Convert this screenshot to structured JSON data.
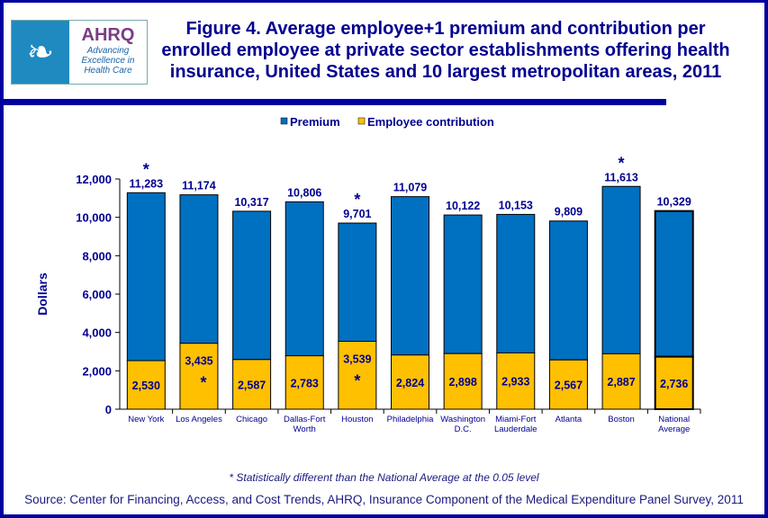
{
  "title": "Figure 4. Average employee+1 premium and contribution per enrolled employee at private sector establishments offering health insurance, United States and 10 largest metropolitan areas, 2011",
  "logo": {
    "text": "AHRQ",
    "tagline": "Advancing Excellence in Health Care"
  },
  "colors": {
    "premium": "#0070c0",
    "contribution": "#ffc000",
    "text": "#000090",
    "frame": "#0000a0"
  },
  "chart_data": {
    "type": "bar",
    "stacked": "overlay",
    "ylabel": "Dollars",
    "ylim": [
      0,
      12000
    ],
    "yticks": [
      "0",
      "2,000",
      "4,000",
      "6,000",
      "8,000",
      "10,000",
      "12,000"
    ],
    "legend": {
      "position": "top",
      "entries": [
        "Premium",
        "Employee contribution"
      ]
    },
    "categories": [
      "New York",
      "Los Angeles",
      "Chicago",
      "Dallas-Fort Worth",
      "Houston",
      "Philadelphia",
      "Washington D.C.",
      "Miami-Fort Lauderdale",
      "Atlanta",
      "Boston",
      "National Average"
    ],
    "category_lines": [
      [
        "New York"
      ],
      [
        "Los Angeles"
      ],
      [
        "Chicago"
      ],
      [
        "Dallas-Fort",
        "Worth"
      ],
      [
        "Houston"
      ],
      [
        "Philadelphia"
      ],
      [
        "Washington",
        "D.C."
      ],
      [
        "Miami-Fort",
        "Lauderdale"
      ],
      [
        "Atlanta"
      ],
      [
        "Boston"
      ],
      [
        "National",
        "Average"
      ]
    ],
    "series": [
      {
        "name": "Premium",
        "values": [
          11283,
          11174,
          10317,
          10806,
          9701,
          11079,
          10122,
          10153,
          9809,
          11613,
          10329
        ],
        "labels": [
          "11,283",
          "11,174",
          "10,317",
          "10,806",
          "9,701",
          "11,079",
          "10,122",
          "10,153",
          "9,809",
          "11,613",
          "10,329"
        ],
        "significant": [
          true,
          false,
          false,
          false,
          true,
          false,
          false,
          false,
          false,
          true,
          false
        ]
      },
      {
        "name": "Employee contribution",
        "values": [
          2530,
          3435,
          2587,
          2783,
          3539,
          2824,
          2898,
          2933,
          2567,
          2887,
          2736
        ],
        "labels": [
          "2,530",
          "3,435",
          "2,587",
          "2,783",
          "3,539",
          "2,824",
          "2,898",
          "2,933",
          "2,567",
          "2,887",
          "2,736"
        ],
        "significant": [
          false,
          true,
          false,
          false,
          true,
          false,
          false,
          false,
          false,
          false,
          false
        ]
      }
    ],
    "significance_marker": "*"
  },
  "footnote": "* Statistically different than the National Average at the 0.05 level",
  "source": "Source: Center for Financing, Access, and Cost Trends, AHRQ, Insurance Component of the Medical Expenditure Panel Survey, 2011"
}
